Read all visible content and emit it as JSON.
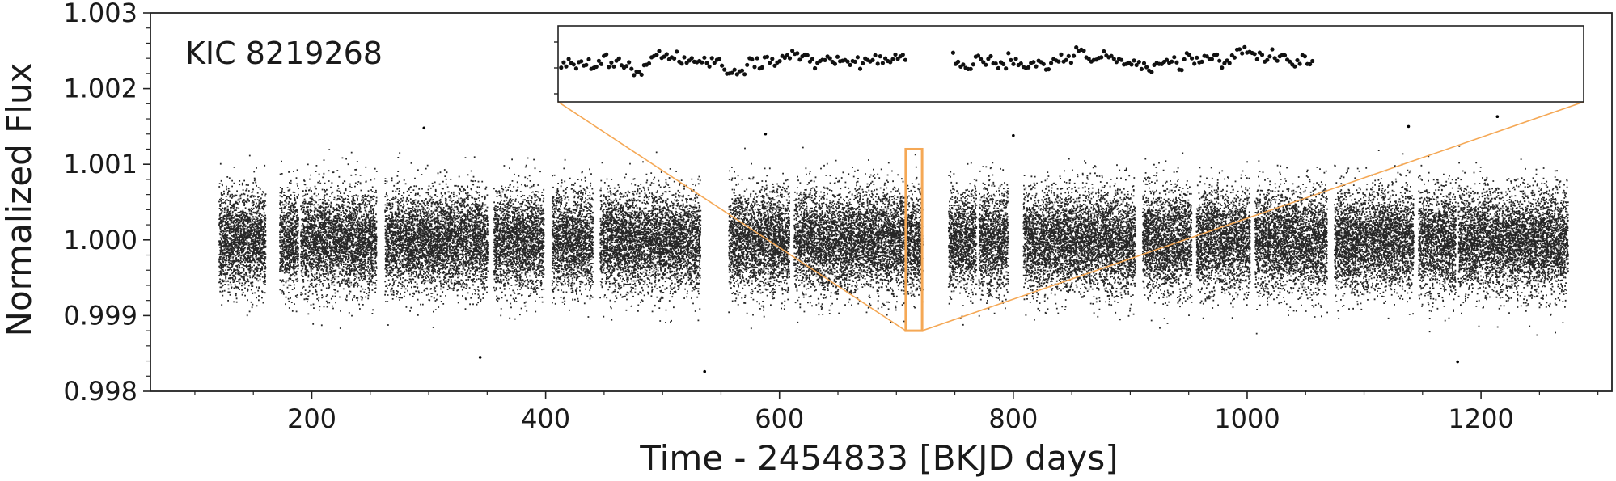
{
  "chart_data": {
    "type": "scatter",
    "title": "",
    "annotation": "KIC 8219268",
    "xlabel": "Time - 2454833 [BKJD days]",
    "ylabel": "Normalized Flux",
    "xlim": [
      62,
      1312
    ],
    "ylim": [
      0.998,
      1.003
    ],
    "x_ticks": [
      200,
      400,
      600,
      800,
      1000,
      1200
    ],
    "x_tick_labels": [
      "200",
      "400",
      "600",
      "800",
      "1000",
      "1200"
    ],
    "y_ticks": [
      0.998,
      0.999,
      1.0,
      1.001,
      1.002,
      1.003
    ],
    "y_tick_labels": [
      "0.998",
      "0.999",
      "1.000",
      "1.001",
      "1.002",
      "1.003"
    ],
    "grid": false,
    "series": [
      {
        "marker_color": "#000000",
        "baseline": 1.0,
        "typical_scatter": 0.00033,
        "observing_segments": [
          [
            120,
            160
          ],
          [
            172,
            188
          ],
          [
            190,
            255
          ],
          [
            262,
            350
          ],
          [
            355,
            398
          ],
          [
            405,
            440
          ],
          [
            446,
            532
          ],
          [
            556,
            608
          ],
          [
            612,
            712
          ],
          [
            712,
            722
          ],
          [
            744,
            768
          ],
          [
            770,
            795
          ],
          [
            808,
            904
          ],
          [
            910,
            952
          ],
          [
            956,
            1002
          ],
          [
            1006,
            1068
          ],
          [
            1074,
            1142
          ],
          [
            1146,
            1178
          ],
          [
            1180,
            1274
          ]
        ],
        "extreme_points": [
          {
            "x": 536,
            "y": 0.99826
          },
          {
            "x": 1180,
            "y": 0.99839
          },
          {
            "x": 344,
            "y": 0.99845
          },
          {
            "x": 1214,
            "y": 1.00163
          },
          {
            "x": 1138,
            "y": 1.0015
          },
          {
            "x": 296,
            "y": 1.00148
          },
          {
            "x": 588,
            "y": 1.0014
          },
          {
            "x": 800,
            "y": 1.00138
          }
        ]
      }
    ],
    "zoom_box": {
      "x_range": [
        708,
        722
      ],
      "y_range": [
        0.9988,
        1.0012
      ],
      "color": "#f5a855"
    },
    "inset": {
      "gap_between_points": [
        0.34,
        0.42
      ]
    }
  }
}
